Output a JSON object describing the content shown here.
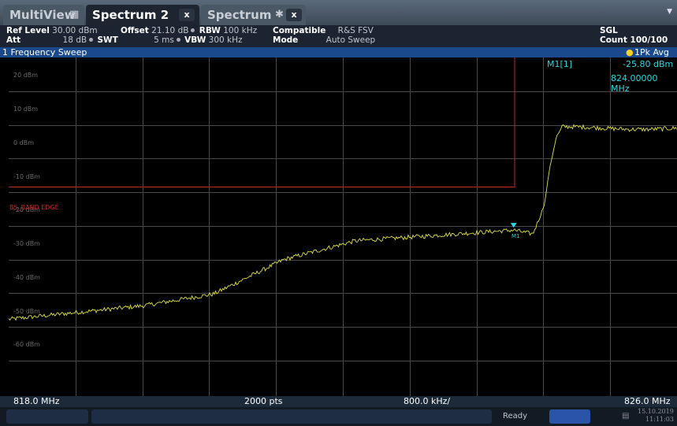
{
  "tabs": {
    "multiview": {
      "label": "MultiView"
    },
    "spectrum2": {
      "label": "Spectrum 2",
      "close": "x"
    },
    "spectrum": {
      "label": "Spectrum",
      "close": "x"
    }
  },
  "info": {
    "ref_level_label": "Ref Level",
    "ref_level": "30.00 dBm",
    "offset_label": "Offset",
    "offset": "21.10 dB",
    "rbw_label": "RBW",
    "rbw": "100 kHz",
    "compatible_label": "Compatible",
    "compatible": "R&S FSV",
    "att_label": "Att",
    "att": "18 dB",
    "swt_label": "SWT",
    "swt": "5 ms",
    "vbw_label": "VBW",
    "vbw": "300 kHz",
    "mode_label": "Mode",
    "mode": "Auto Sweep",
    "sgl": "SGL",
    "count": "Count 100/100"
  },
  "sweep": {
    "title": "1 Frequency Sweep",
    "trace": "1Pk Avg"
  },
  "marker": {
    "header": "M1[1]",
    "level": "-25.80 dBm",
    "freq": "824.00000 MHz",
    "name": "M1"
  },
  "limit_line": {
    "label": "B5_BAND EDGE",
    "color": "#c0282a"
  },
  "trace_color": "#e0e040",
  "y_axis_labels": [
    "20 dBm",
    "10 dBm",
    "0 dBm",
    "-10 dBm",
    "-20 dBm",
    "-30 dBm",
    "-40 dBm",
    "-50 dBm",
    "-60 dBm"
  ],
  "footer": {
    "start": "818.0 MHz",
    "points": "2000 pts",
    "span_div": "800.0 kHz/",
    "stop": "826.0 MHz"
  },
  "status": {
    "ready": "Ready",
    "date": "15.10.2019",
    "time": "11:11:03"
  }
}
